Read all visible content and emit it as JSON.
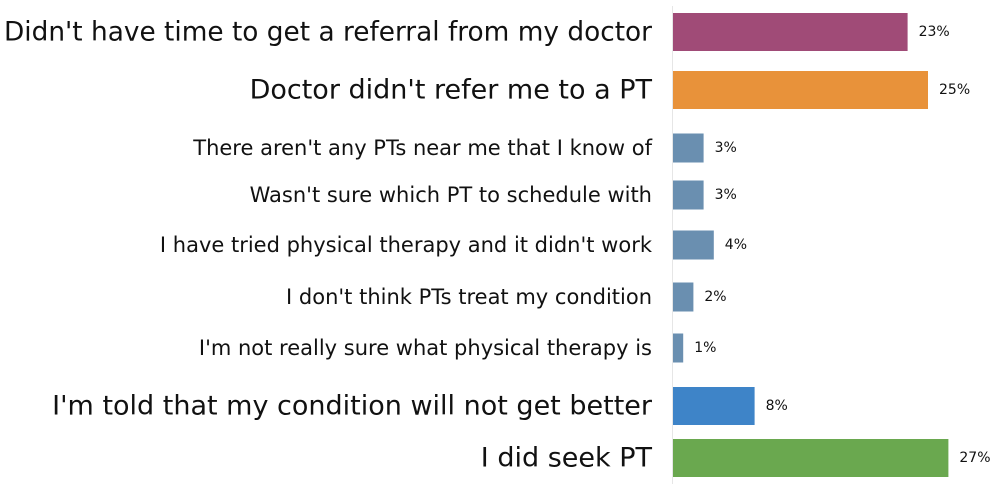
{
  "chart_data": {
    "type": "bar",
    "orientation": "horizontal",
    "title": "",
    "xlabel": "",
    "ylabel": "",
    "xlim": [
      0,
      27
    ],
    "grid": false,
    "legend": "none",
    "value_suffix": "%",
    "categories": [
      "Didn't have time to get a referral from my doctor",
      "Doctor didn't refer me to a PT",
      "There aren't any PTs near me that I know of",
      "Wasn't sure which PT to schedule with",
      "I have tried physical therapy and it didn't work",
      "I don't think PTs treat my condition",
      "I'm not really sure what physical therapy is",
      "I'm told that my condition will not get better",
      "I did seek PT"
    ],
    "values": [
      23,
      25,
      3,
      3,
      4,
      2,
      1,
      8,
      27
    ],
    "value_labels": [
      "23%",
      "25%",
      "3%",
      "3%",
      "4%",
      "2%",
      "1%",
      "8%",
      "27%"
    ],
    "colors": [
      "#a04b77",
      "#e8923a",
      "#6a8fb0",
      "#6a8fb0",
      "#6a8fb0",
      "#6a8fb0",
      "#6a8fb0",
      "#3e84c8",
      "#6aa84f"
    ],
    "emphasis": [
      true,
      true,
      false,
      false,
      false,
      false,
      false,
      true,
      true
    ]
  }
}
